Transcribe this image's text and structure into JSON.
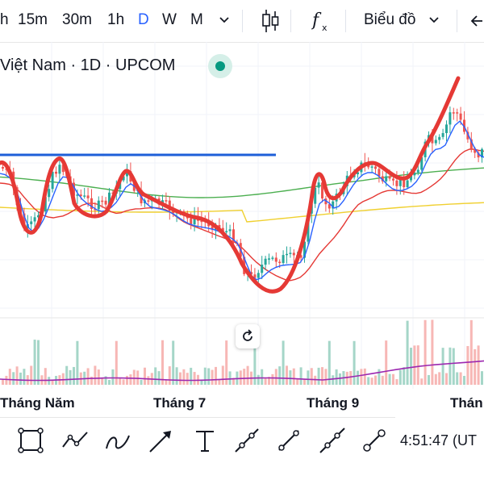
{
  "toolbar": {
    "timeframes": [
      "h",
      "15m",
      "30m",
      "1h",
      "D",
      "W",
      "M"
    ],
    "active_timeframe": "D",
    "chart_type_label": "Biểu đồ",
    "icons": [
      "chevron-down-icon",
      "candlestick-icon",
      "indicators-fx-icon",
      "chevron-down-icon",
      "undo-arrow-icon"
    ]
  },
  "legend": {
    "symbol_text": "Việt Nam · 1D · UPCOM",
    "market_status": "open"
  },
  "x_axis": {
    "labels": [
      "Tháng Năm",
      "Tháng 7",
      "Tháng 9",
      "Thán"
    ]
  },
  "drawing_tools": [
    "rectangle-icon",
    "path-icon",
    "brush-icon",
    "arrow-icon",
    "text-icon",
    "ray-icon",
    "trend-line-icon",
    "extended-line-icon",
    "info-line-icon"
  ],
  "clock": "4:51:47 (UT",
  "colors": {
    "up": "#26a69a",
    "down": "#ef5350",
    "accent": "#2962ff",
    "annotation_red": "#e53935",
    "resistance_blue": "#1e5fd8",
    "ma_yellow": "#f0d030",
    "ma_green": "#4caf50",
    "ma_red": "#e53935",
    "ma_blue": "#2962ff",
    "volume_ma": "#9c27b0"
  },
  "chart_data": {
    "type": "candlestick",
    "title": "",
    "xlabel": "",
    "ylabel": "",
    "x": [
      "Tháng Năm",
      "Tháng 7",
      "Tháng 9",
      "Thán"
    ],
    "grid": true,
    "overlays": [
      "moving-averages",
      "horizontal-resistance-line",
      "hand-drawn-annotation"
    ],
    "volume_pane": true
  }
}
